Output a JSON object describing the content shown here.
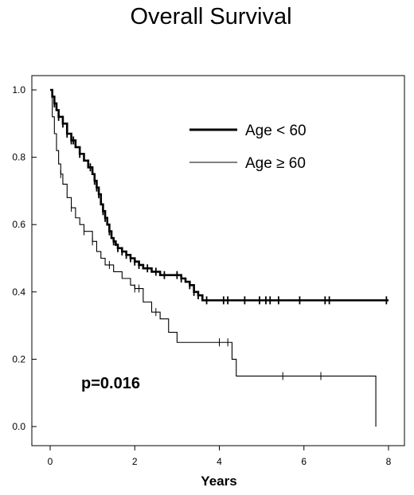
{
  "chart_data": {
    "type": "line",
    "subtype": "kaplan-meier",
    "title": "Overall Survival",
    "xlabel": "Years",
    "ylabel": "",
    "xlim": [
      0,
      8
    ],
    "ylim": [
      0,
      1.0
    ],
    "x_ticks": [
      "0",
      "2",
      "4",
      "6",
      "8"
    ],
    "y_ticks": [
      "0.0",
      "0.2",
      "0.4",
      "0.6",
      "0.8",
      "1.0"
    ],
    "grid": false,
    "legend_position": "top-right",
    "annotation": "p=0.016",
    "series": [
      {
        "name": "Age < 60",
        "line_style": "thick",
        "x": [
          0,
          0.05,
          0.1,
          0.15,
          0.2,
          0.3,
          0.4,
          0.5,
          0.6,
          0.7,
          0.8,
          0.9,
          1.0,
          1.05,
          1.1,
          1.15,
          1.2,
          1.25,
          1.3,
          1.35,
          1.4,
          1.45,
          1.5,
          1.55,
          1.6,
          1.7,
          1.8,
          1.9,
          2.0,
          2.1,
          2.2,
          2.4,
          2.6,
          2.8,
          3.0,
          3.1,
          3.2,
          3.3,
          3.4,
          3.5,
          3.6,
          8.0
        ],
        "y": [
          1.0,
          0.98,
          0.96,
          0.94,
          0.92,
          0.9,
          0.87,
          0.85,
          0.83,
          0.81,
          0.79,
          0.77,
          0.75,
          0.73,
          0.71,
          0.69,
          0.66,
          0.64,
          0.62,
          0.6,
          0.58,
          0.56,
          0.55,
          0.54,
          0.53,
          0.52,
          0.51,
          0.5,
          0.49,
          0.48,
          0.47,
          0.46,
          0.45,
          0.45,
          0.45,
          0.44,
          0.43,
          0.42,
          0.4,
          0.39,
          0.375,
          0.375
        ],
        "censor_x": [
          0.1,
          0.2,
          0.3,
          0.4,
          0.5,
          0.55,
          0.7,
          0.95,
          1.05,
          1.1,
          1.15,
          1.25,
          1.3,
          1.4,
          1.5,
          1.6,
          1.7,
          1.8,
          1.9,
          2.0,
          2.1,
          2.3,
          2.5,
          2.7,
          3.0,
          3.1,
          3.3,
          3.4,
          3.5,
          3.7,
          4.1,
          4.2,
          4.6,
          4.95,
          5.1,
          5.2,
          5.4,
          5.9,
          6.5,
          6.6,
          7.95
        ]
      },
      {
        "name": "Age ≥ 60",
        "line_style": "thin",
        "x": [
          0,
          0.05,
          0.1,
          0.15,
          0.2,
          0.25,
          0.3,
          0.4,
          0.5,
          0.6,
          0.7,
          0.8,
          1.0,
          1.1,
          1.2,
          1.3,
          1.5,
          1.7,
          1.9,
          2.0,
          2.2,
          2.4,
          2.6,
          2.8,
          3.0,
          4.2,
          4.3,
          4.4,
          7.7,
          7.7
        ],
        "y": [
          1.0,
          0.92,
          0.87,
          0.82,
          0.78,
          0.75,
          0.72,
          0.68,
          0.65,
          0.62,
          0.6,
          0.58,
          0.55,
          0.52,
          0.5,
          0.48,
          0.46,
          0.44,
          0.42,
          0.41,
          0.37,
          0.34,
          0.32,
          0.28,
          0.25,
          0.25,
          0.2,
          0.15,
          0.15,
          0.0
        ],
        "censor_x": [
          0.25,
          0.5,
          0.8,
          1.0,
          1.4,
          2.0,
          2.1,
          2.5,
          4.0,
          4.2,
          5.5,
          6.4
        ]
      }
    ]
  }
}
